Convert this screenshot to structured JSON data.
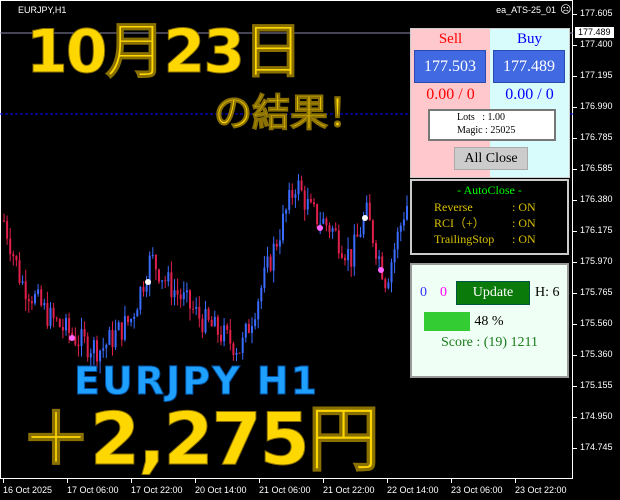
{
  "chart": {
    "symbol": "EURJPY,H1",
    "ea_name": "ea_ATS-25_01",
    "current_price": "177.489",
    "price_labels": [
      "177.605",
      "177.400",
      "177.195",
      "176.990",
      "176.785",
      "176.585",
      "176.380",
      "176.175",
      "175.970",
      "175.765",
      "175.560",
      "175.360",
      "175.155",
      "174.950",
      "174.745"
    ],
    "time_labels": [
      "16 Oct 2025",
      "17 Oct 06:00",
      "17 Oct 22:00",
      "20 Oct 14:00",
      "21 Oct 06:00",
      "21 Oct 22:00",
      "22 Oct 14:00",
      "23 Oct 06:00",
      "23 Oct 22:00"
    ],
    "colors": {
      "bull": "#3a6cff",
      "bear": "#e0204a"
    }
  },
  "overlay": {
    "date_title": "10月23日",
    "result_title": "の結果！",
    "pair_label": "EURJPY H1",
    "profit": "＋2,275円"
  },
  "trade_panel": {
    "sell_label": "Sell",
    "buy_label": "Buy",
    "sell_price": "177.503",
    "buy_price": "177.489",
    "sell_pl": "0.00 / 0",
    "buy_pl": "0.00 / 0",
    "lots": "Lots   : 1.00",
    "magic": "Magic : 25025",
    "all_close_label": "All Close"
  },
  "autoclose": {
    "title": "- AutoClose -",
    "rows": [
      {
        "label": "Reverse",
        "value": ": ON"
      },
      {
        "label": "RCI（+）",
        "value": ": ON"
      },
      {
        "label": "TrailingStop",
        "value": ": ON"
      }
    ]
  },
  "score_panel": {
    "count_blue": "0",
    "count_magenta": "0",
    "update_label": "Update",
    "h_value": "H: 6",
    "progress_percent": 48,
    "progress_text": "48 %",
    "score": "Score : (19) 1211"
  }
}
